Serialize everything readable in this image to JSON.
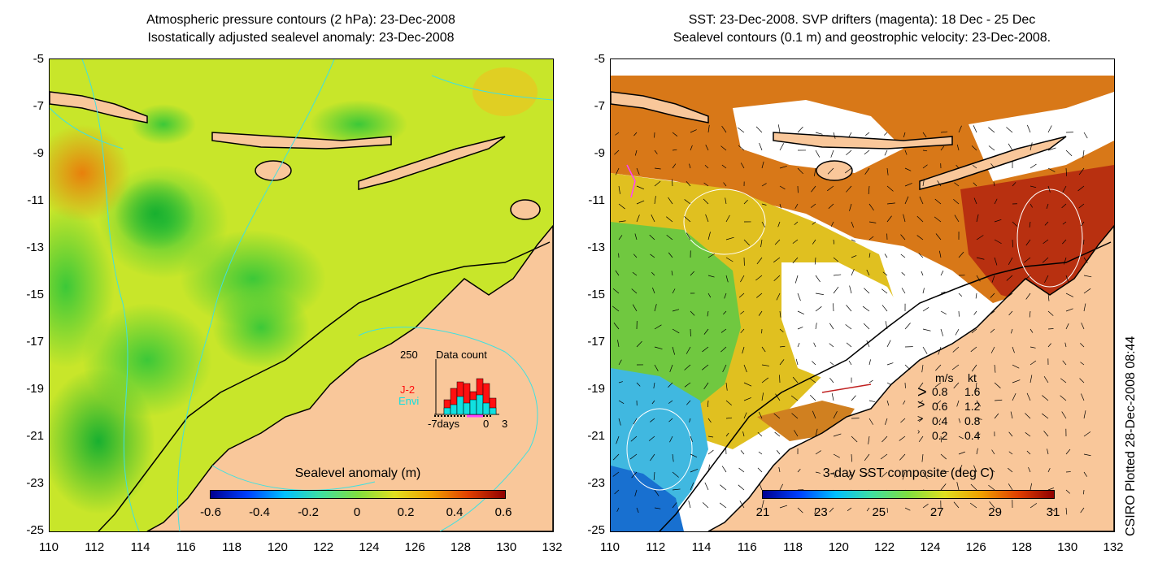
{
  "left": {
    "title_line1": "Atmospheric pressure contours (2 hPa): 23-Dec-2008",
    "title_line2": "Isostatically adjusted sealevel anomaly: 23-Dec-2008",
    "colorbar_title": "Sealevel anomaly (m)",
    "colorbar_labels": [
      "-0.6",
      "-0.4",
      "-0.2",
      "0",
      "0.2",
      "0.4",
      "0.6"
    ],
    "inset": {
      "ymax": "250",
      "title": "Data count",
      "j2_label": "J-2",
      "envi_label": "Envi",
      "x_left": "-7days",
      "x_zero": "0",
      "x_right": "3",
      "j2_color": "#ff1010",
      "envi_color": "#10e0e0"
    }
  },
  "right": {
    "title_line1": "SST: 23-Dec-2008. SVP drifters (magenta): 18 Dec - 25 Dec",
    "title_line2": "Sealevel contours (0.1 m) and geostrophic velocity: 23-Dec-2008.",
    "colorbar_title": "3-day SST composite (deg C)",
    "colorbar_labels": [
      "21",
      "23",
      "25",
      "27",
      "29",
      "31"
    ],
    "velocity_legend": {
      "header_ms": "m/s",
      "header_kt": "kt",
      "rows": [
        {
          "ms": "0.8",
          "kt": "1.6"
        },
        {
          "ms": "0.6",
          "kt": "1.2"
        },
        {
          "ms": "0.4",
          "kt": "0.8"
        },
        {
          "ms": "0.2",
          "kt": "0.4"
        }
      ]
    }
  },
  "axes": {
    "y_ticks": [
      "-5",
      "-7",
      "-9",
      "-11",
      "-13",
      "-15",
      "-17",
      "-19",
      "-21",
      "-23",
      "-25"
    ],
    "x_ticks": [
      "110",
      "112",
      "114",
      "116",
      "118",
      "120",
      "122",
      "124",
      "126",
      "128",
      "130",
      "132"
    ]
  },
  "credit": "CSIRO Plotted 28-Dec-2008 08:44",
  "colors": {
    "land": "#f9c79a",
    "contour": "#40e0e0"
  }
}
